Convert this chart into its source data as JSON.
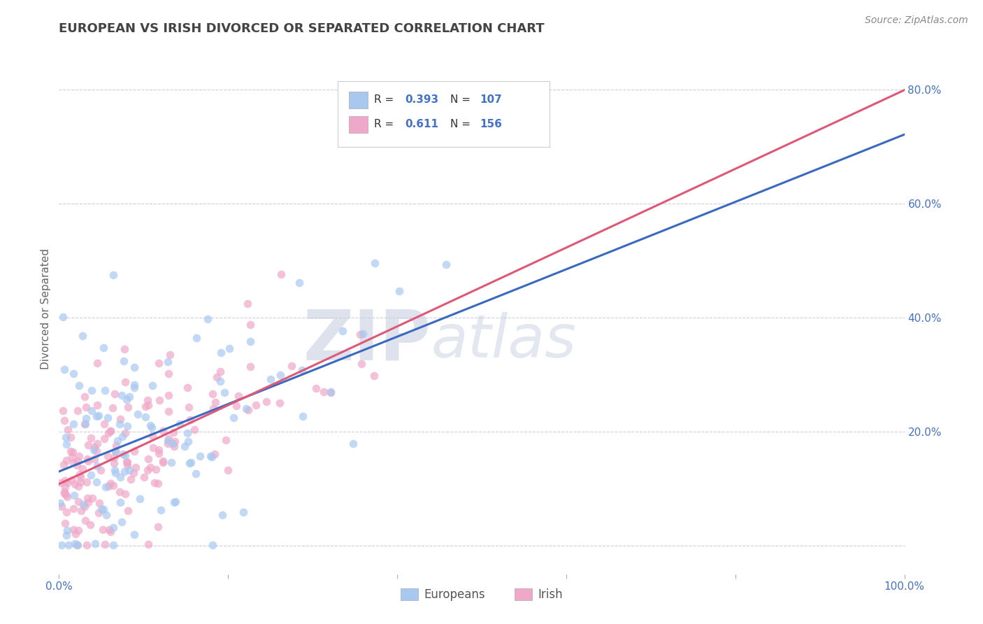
{
  "title": "EUROPEAN VS IRISH DIVORCED OR SEPARATED CORRELATION CHART",
  "source_text": "Source: ZipAtlas.com",
  "ylabel": "Divorced or Separated",
  "xlim": [
    0.0,
    1.0
  ],
  "ylim": [
    -0.05,
    0.88
  ],
  "x_ticks": [
    0.0,
    0.2,
    0.4,
    0.6,
    0.8,
    1.0
  ],
  "x_tick_labels": [
    "0.0%",
    "",
    "",
    "",
    "",
    "100.0%"
  ],
  "y_ticks": [
    0.0,
    0.2,
    0.4,
    0.6,
    0.8
  ],
  "y_tick_labels": [
    "",
    "20.0%",
    "40.0%",
    "60.0%",
    "80.0%"
  ],
  "european_color": "#a8c8f0",
  "irish_color": "#f0a8c8",
  "european_line_color": "#3a6abf",
  "irish_line_color": "#e05878",
  "european_R": 0.393,
  "european_N": 107,
  "irish_R": 0.611,
  "irish_N": 156,
  "watermark_color": "#c8d0e0",
  "legend_value_color": "#4472c4",
  "tick_label_color": "#4472c4",
  "background_color": "#ffffff",
  "grid_color": "#ccccdd",
  "title_color": "#444444"
}
